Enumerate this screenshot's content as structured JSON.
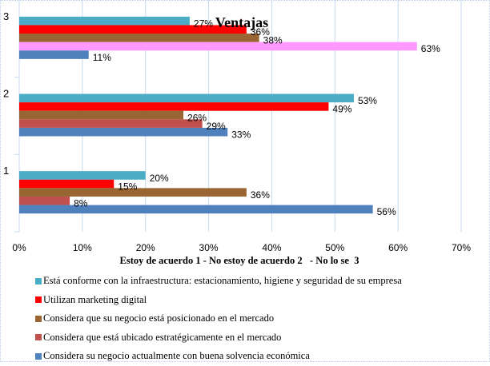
{
  "chart_data": {
    "type": "bar",
    "orientation": "horizontal",
    "title": "Ventajas",
    "xlabel": "Estoy de acuerdo 1 - No estoy de acuerdo 2   - No lo se  3",
    "ylabel": "",
    "categories": [
      "1",
      "2",
      "3"
    ],
    "xlim": [
      0,
      70
    ],
    "xticks": [
      "0%",
      "10%",
      "20%",
      "30%",
      "40%",
      "50%",
      "60%",
      "70%"
    ],
    "grid": true,
    "legend_position": "bottom",
    "series": [
      {
        "name": "Está conforme con la infraestructura: estacionamiento, higiene y seguridad de su empresa",
        "color": "#4bacc6",
        "values": [
          20,
          53,
          27
        ],
        "labels": [
          "20%",
          "53%",
          "27%"
        ]
      },
      {
        "name": "Utilizan marketing digital",
        "color": "#ff0000",
        "values": [
          15,
          49,
          36
        ],
        "labels": [
          "15%",
          "49%",
          "36%"
        ]
      },
      {
        "name": "Considera que su negocio está posicionado en el mercado",
        "color": "#996633",
        "values": [
          36,
          26,
          38
        ],
        "labels": [
          "36%",
          "26%",
          "38%"
        ]
      },
      {
        "name": "Considera que está ubicado estratégicamente en el mercado",
        "color": "#c0504d",
        "values": [
          8,
          29,
          null
        ],
        "labels": [
          "8%",
          "29%",
          ""
        ]
      },
      {
        "name": "Considera su negocio actualmente con buena solvencia económica",
        "color": "#4f81bd",
        "values": [
          56,
          33,
          11
        ],
        "labels": [
          "56%",
          "33%",
          "11%"
        ]
      }
    ],
    "special_bars": [
      {
        "category": "3",
        "slot": 3,
        "color": "#ff99ff",
        "value": 63,
        "label": "63%"
      }
    ]
  }
}
